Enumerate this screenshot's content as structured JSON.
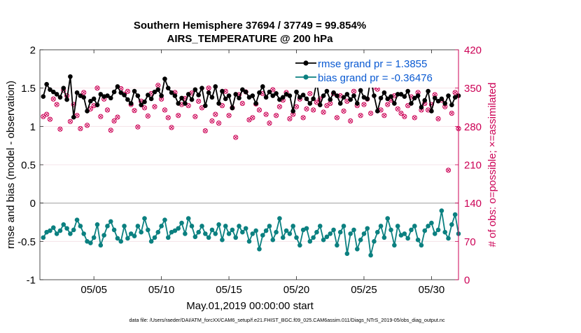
{
  "chart_data": {
    "type": "line",
    "title_line1": "Southern Hemisphere 37694 / 37749 = 99.854%",
    "title_line2": "AIRS_TEMPERATURE @ 200 hPa",
    "xlabel": "May.01,2019 00:00:00 start",
    "ylabel_left": "rmse and bias (model - observation)",
    "ylabel_right": "# of obs: o=possible; ×=assimilated",
    "footer": "data file: /Users/raeder/DAI/ATM_forcXX/CAM6_setup/f.e21.FHIST_BGC.f09_025.CAM6assim.011/Diags_NTrS_2019-05/obs_diag_output.nc",
    "x_range_days": [
      1,
      32
    ],
    "ylim_left": [
      -1,
      2
    ],
    "ylim_right": [
      0,
      420
    ],
    "yticks_left": [
      "-1",
      "-0.5",
      "0",
      "0.5",
      "1",
      "1.5",
      "2"
    ],
    "yticks_right": [
      "0",
      "70",
      "140",
      "210",
      "280",
      "350",
      "420"
    ],
    "xticks": [
      {
        "day": 5,
        "label": "05/05"
      },
      {
        "day": 10,
        "label": "05/10"
      },
      {
        "day": 15,
        "label": "05/15"
      },
      {
        "day": 20,
        "label": "05/20"
      },
      {
        "day": 25,
        "label": "05/25"
      },
      {
        "day": 30,
        "label": "05/30"
      }
    ],
    "legend": [
      {
        "label": "rmse grand pr = 1.3855",
        "color": "#000000"
      },
      {
        "label": "bias grand pr = -0.36476",
        "color": "#0b8080"
      }
    ],
    "colors": {
      "rmse": "#000000",
      "bias": "#0b8080",
      "obs": "#cc0055",
      "zero_line": "#b8b8b8",
      "axis": "#222222"
    },
    "start_day": 1.25,
    "step_days": 0.25,
    "rmse": [
      1.39,
      1.55,
      1.48,
      1.45,
      1.42,
      1.38,
      1.5,
      1.35,
      1.65,
      1.12,
      1.44,
      1.4,
      1.38,
      1.2,
      1.33,
      1.36,
      1.28,
      1.42,
      1.39,
      1.4,
      1.37,
      1.45,
      1.52,
      1.44,
      1.41,
      1.35,
      1.3,
      1.46,
      1.4,
      1.28,
      1.32,
      1.41,
      1.36,
      1.45,
      1.48,
      1.4,
      1.62,
      1.5,
      1.44,
      1.4,
      1.3,
      1.37,
      1.3,
      1.42,
      1.35,
      1.48,
      1.41,
      1.5,
      1.27,
      1.44,
      1.38,
      1.52,
      1.3,
      1.46,
      1.36,
      1.4,
      1.24,
      1.42,
      1.37,
      1.48,
      1.45,
      1.38,
      1.4,
      1.3,
      1.44,
      1.52,
      1.38,
      1.45,
      1.4,
      1.43,
      1.35,
      1.38,
      1.42,
      1.4,
      1.2,
      1.45,
      1.38,
      1.41,
      1.36,
      1.3,
      1.36,
      1.58,
      1.28,
      1.4,
      1.46,
      1.35,
      1.44,
      1.4,
      1.3,
      1.38,
      1.42,
      1.35,
      1.4,
      1.3,
      1.47,
      1.38,
      1.36,
      1.62,
      1.4,
      1.2,
      1.37,
      1.44,
      1.36,
      1.39,
      1.3,
      1.42,
      1.42,
      1.39,
      1.46,
      1.3,
      1.37,
      1.4,
      1.25,
      1.34,
      1.46,
      1.2,
      1.37,
      1.33,
      1.36,
      1.3,
      1.4,
      1.28,
      1.38,
      1.4,
      1.5,
      1.3,
      1.48,
      1.36,
      1.4,
      1.38,
      1.35,
      1.4,
      1.38,
      1.4,
      1.45,
      1.32,
      1.39,
      1.41,
      1.34,
      1.3,
      1.5,
      1.36,
      1.4,
      1.44,
      1.34,
      1.4,
      1.3,
      1.37,
      1.44,
      1.39,
      1.34,
      1.48,
      1.38,
      1.38,
      1.42,
      1.28,
      1.4,
      1.44,
      1.38,
      1.4,
      1.4,
      1.52,
      1.3,
      1.38,
      1.35,
      1.38,
      1.4,
      1.35,
      1.42,
      1.44,
      1.38,
      1.48,
      1.4,
      1.4,
      1.35,
      1.38,
      1.36,
      1.38,
      1.4,
      1.45,
      1.4,
      1.42,
      1.3,
      1.4,
      1.52,
      1.4,
      1.38,
      1.4,
      1.45,
      1.38,
      1.4,
      1.45,
      1.38,
      1.46,
      1.4,
      1.38,
      1.5,
      1.4,
      1.45,
      1.4,
      1.33,
      1.38,
      1.35,
      1.38,
      1.4,
      1.46,
      1.3,
      1.42,
      1.36,
      1.38,
      1.4,
      1.35,
      1.45,
      1.42,
      1.4,
      1.35,
      1.38,
      1.44,
      1.48,
      1.4,
      1.52,
      1.46,
      1.41,
      1.36,
      1.45,
      1.4,
      1.35,
      1.38,
      1.4,
      1.38,
      1.46,
      1.38,
      1.4,
      1.37,
      1.44,
      1.41,
      1.5,
      1.38,
      1.4,
      1.45,
      1.36,
      1.4,
      1.48,
      1.4,
      1.46,
      1.52,
      1.42,
      1.38,
      1.42,
      1.38,
      1.36
    ],
    "bias": [
      -0.45,
      -0.38,
      -0.36,
      -0.32,
      -0.4,
      -0.36,
      -0.28,
      -0.33,
      -0.4,
      -0.35,
      -0.22,
      -0.3,
      -0.4,
      -0.5,
      -0.52,
      -0.45,
      -0.28,
      -0.55,
      -0.42,
      -0.3,
      -0.24,
      -0.35,
      -0.46,
      -0.5,
      -0.3,
      -0.46,
      -0.4,
      -0.43,
      -0.3,
      -0.38,
      -0.2,
      -0.35,
      -0.5,
      -0.45,
      -0.38,
      -0.3,
      -0.22,
      -0.45,
      -0.38,
      -0.36,
      -0.33,
      -0.26,
      -0.4,
      -0.2,
      -0.3,
      -0.44,
      -0.38,
      -0.3,
      -0.4,
      -0.45,
      -0.35,
      -0.4,
      -0.28,
      -0.48,
      -0.3,
      -0.4,
      -0.35,
      -0.45,
      -0.3,
      -0.38,
      -0.33,
      -0.5,
      -0.4,
      -0.36,
      -0.6,
      -0.42,
      -0.36,
      -0.3,
      -0.48,
      -0.38,
      -0.2,
      -0.45,
      -0.36,
      -0.4,
      -0.3,
      -0.45,
      -0.55,
      -0.35,
      -0.33,
      -0.5,
      -0.45,
      -0.38,
      -0.3,
      -0.48,
      -0.44,
      -0.4,
      -0.35,
      -0.55,
      -0.38,
      -0.3,
      -0.66,
      -0.4,
      -0.35,
      -0.6,
      -0.48,
      -0.4,
      -0.33,
      -0.68,
      -0.5,
      -0.38,
      -0.3,
      -0.45,
      -0.2,
      -0.35,
      -0.55,
      -0.3,
      -0.42,
      -0.4,
      -0.46,
      -0.35,
      -0.3,
      -0.48,
      -0.55,
      -0.36,
      -0.3,
      -0.26,
      -0.4,
      -0.35,
      -0.1,
      -0.38,
      -0.46,
      -0.28,
      -0.15,
      -0.4,
      -0.35,
      -0.3,
      -0.48,
      -0.36,
      -0.4,
      -0.3,
      -0.45,
      -0.35,
      -0.25,
      -0.4,
      -0.55,
      -0.38,
      -0.3,
      -0.4,
      -0.3,
      -0.35,
      -0.2,
      -0.38,
      -0.3,
      -0.25,
      -0.38,
      -0.3,
      -0.35,
      -0.42,
      -0.3,
      -0.35,
      -0.18,
      -0.3,
      -0.38,
      -0.22,
      -0.35,
      -0.4,
      -0.3,
      -0.25,
      -0.33,
      -0.48,
      -0.38,
      -0.3,
      -0.4,
      -0.2,
      -0.35,
      -0.28,
      -0.32,
      -0.4,
      -0.3,
      -0.36,
      -0.28,
      -0.4,
      -0.3,
      -0.36,
      -0.5,
      -0.35,
      -0.28,
      -0.4,
      -0.34,
      -0.45,
      -0.3,
      -0.4,
      -0.35,
      -0.4,
      -0.3,
      -0.38,
      -0.33,
      -0.44,
      -0.26,
      -0.38,
      -0.3,
      -0.35,
      -0.42,
      -0.36,
      -0.28,
      -0.3,
      -0.4,
      -0.34,
      -0.38,
      -0.32,
      -0.42,
      -0.3,
      -0.25,
      -0.3,
      -0.25,
      -0.38,
      -0.3,
      -0.2,
      -0.36,
      -0.3,
      -0.26,
      -0.38,
      -0.45,
      -0.3,
      -0.4,
      -0.32,
      -0.38,
      -0.3,
      -0.36,
      -0.4,
      -0.48,
      -0.3,
      -0.35,
      -0.4,
      -0.32,
      -0.28,
      -0.05,
      -0.3,
      -0.38,
      -0.22,
      -0.3,
      -0.4,
      -0.36,
      -0.3,
      -0.38,
      -0.42,
      -0.3,
      -0.4,
      -0.36,
      -0.3,
      -0.38,
      -0.35,
      -0.2,
      -0.3,
      -0.38,
      -0.32,
      -0.25,
      -0.3,
      -0.4,
      -0.35,
      -0.3,
      -0.22,
      -0.28
    ],
    "obs_possible": [
      298,
      302,
      293,
      330,
      320,
      275,
      346,
      336,
      289,
      320,
      300,
      276,
      342,
      282,
      312,
      318,
      350,
      298,
      330,
      310,
      273,
      290,
      297,
      349,
      339,
      344,
      320,
      309,
      279,
      326,
      314,
      299,
      340,
      316,
      355,
      330,
      310,
      296,
      278,
      342,
      300,
      320,
      331,
      318,
      341,
      298,
      326,
      314,
      272,
      350,
      290,
      302,
      286,
      318,
      344,
      300,
      314,
      260,
      338,
      322,
      343,
      292,
      296,
      321,
      310,
      340,
      302,
      286,
      347,
      300,
      316,
      328,
      342,
      294,
      302,
      316,
      330,
      296,
      312,
      340,
      310,
      324,
      330,
      306,
      318,
      322,
      340,
      296,
      336,
      308,
      326,
      290,
      344,
      318,
      300,
      320,
      330,
      304,
      352,
      348,
      310,
      300,
      320,
      328,
      336,
      312,
      304,
      298,
      318,
      334,
      296,
      342,
      310,
      322,
      310,
      320,
      338,
      294,
      328,
      316,
      200,
      304,
      342,
      276,
      316,
      310,
      296,
      322,
      304,
      340,
      290,
      302,
      342,
      310,
      320,
      296,
      318,
      330,
      336,
      306,
      314,
      310,
      296,
      322,
      300,
      328,
      314,
      304,
      310,
      290,
      330,
      318,
      306,
      320,
      336,
      296,
      310,
      328,
      300,
      322,
      314,
      298,
      310,
      334,
      296,
      310,
      318,
      328,
      300,
      310,
      330,
      286,
      318,
      306,
      340,
      296,
      320,
      314,
      306,
      290,
      318,
      300,
      310,
      326,
      302,
      320,
      312,
      296,
      328,
      300,
      314,
      310,
      330,
      290,
      320,
      306,
      330,
      310,
      300,
      322,
      314,
      296,
      318,
      308,
      300,
      330,
      296,
      310,
      320,
      306,
      290,
      330,
      310,
      300,
      318,
      314,
      296,
      320,
      306,
      300,
      330,
      314,
      296,
      318,
      306,
      322,
      310,
      300,
      314,
      296,
      330,
      310,
      320,
      300,
      296,
      318,
      310,
      306,
      300,
      330,
      286,
      320,
      314,
      300,
      310,
      290,
      322,
      306,
      318,
      300,
      314,
      296,
      304,
      282,
      330,
      280
    ],
    "obs_assimilated": [
      298,
      302,
      293,
      330,
      320,
      275,
      346,
      336,
      289,
      320,
      300,
      276,
      342,
      282,
      312,
      318,
      350,
      298,
      330,
      310,
      273,
      290,
      297,
      349,
      339,
      344,
      320,
      309,
      279,
      326,
      314,
      299,
      340,
      316,
      355,
      330,
      310,
      296,
      278,
      342,
      300,
      320,
      331,
      318,
      341,
      298,
      326,
      314,
      272,
      350,
      290,
      302,
      286,
      318,
      344,
      300,
      314,
      260,
      338,
      322,
      343,
      292,
      296,
      321,
      310,
      340,
      302,
      286,
      347,
      300,
      316,
      328,
      342,
      294,
      302,
      316,
      330,
      296,
      312,
      340,
      310,
      324,
      330,
      306,
      318,
      322,
      340,
      296,
      336,
      308,
      326,
      290,
      344,
      318,
      300,
      320,
      330,
      304,
      352,
      348,
      310,
      300,
      320,
      328,
      336,
      312,
      304,
      298,
      318,
      334,
      296,
      342,
      310,
      322,
      310,
      320,
      338,
      294,
      328,
      316,
      200,
      304,
      342,
      276,
      316,
      310,
      296,
      322,
      304,
      340,
      290,
      302,
      342,
      310,
      320,
      296,
      318,
      330,
      336,
      306,
      314,
      310,
      296,
      322,
      300,
      328,
      314,
      304,
      310,
      290,
      330,
      318,
      306,
      320,
      336,
      296,
      310,
      328,
      300,
      322,
      314,
      298,
      310,
      334,
      296,
      310,
      318,
      328,
      300,
      310,
      330,
      286,
      318,
      306,
      340,
      296,
      320,
      314,
      306,
      290,
      318,
      300,
      310,
      326,
      302,
      320,
      312,
      296,
      328,
      300,
      314,
      310,
      330,
      290,
      320,
      306,
      330,
      310,
      300,
      322,
      314,
      296,
      318,
      308,
      300,
      330,
      296,
      310,
      320,
      306,
      290,
      330,
      310,
      300,
      318,
      314,
      296,
      320,
      306,
      300,
      330,
      314,
      296,
      318,
      306,
      322,
      310,
      300,
      314,
      296,
      330,
      310,
      320,
      300,
      296,
      318,
      310,
      306,
      300,
      330,
      286,
      320,
      314,
      300,
      310,
      290,
      322,
      306,
      318,
      300,
      314,
      296,
      304,
      282,
      330,
      280
    ]
  }
}
